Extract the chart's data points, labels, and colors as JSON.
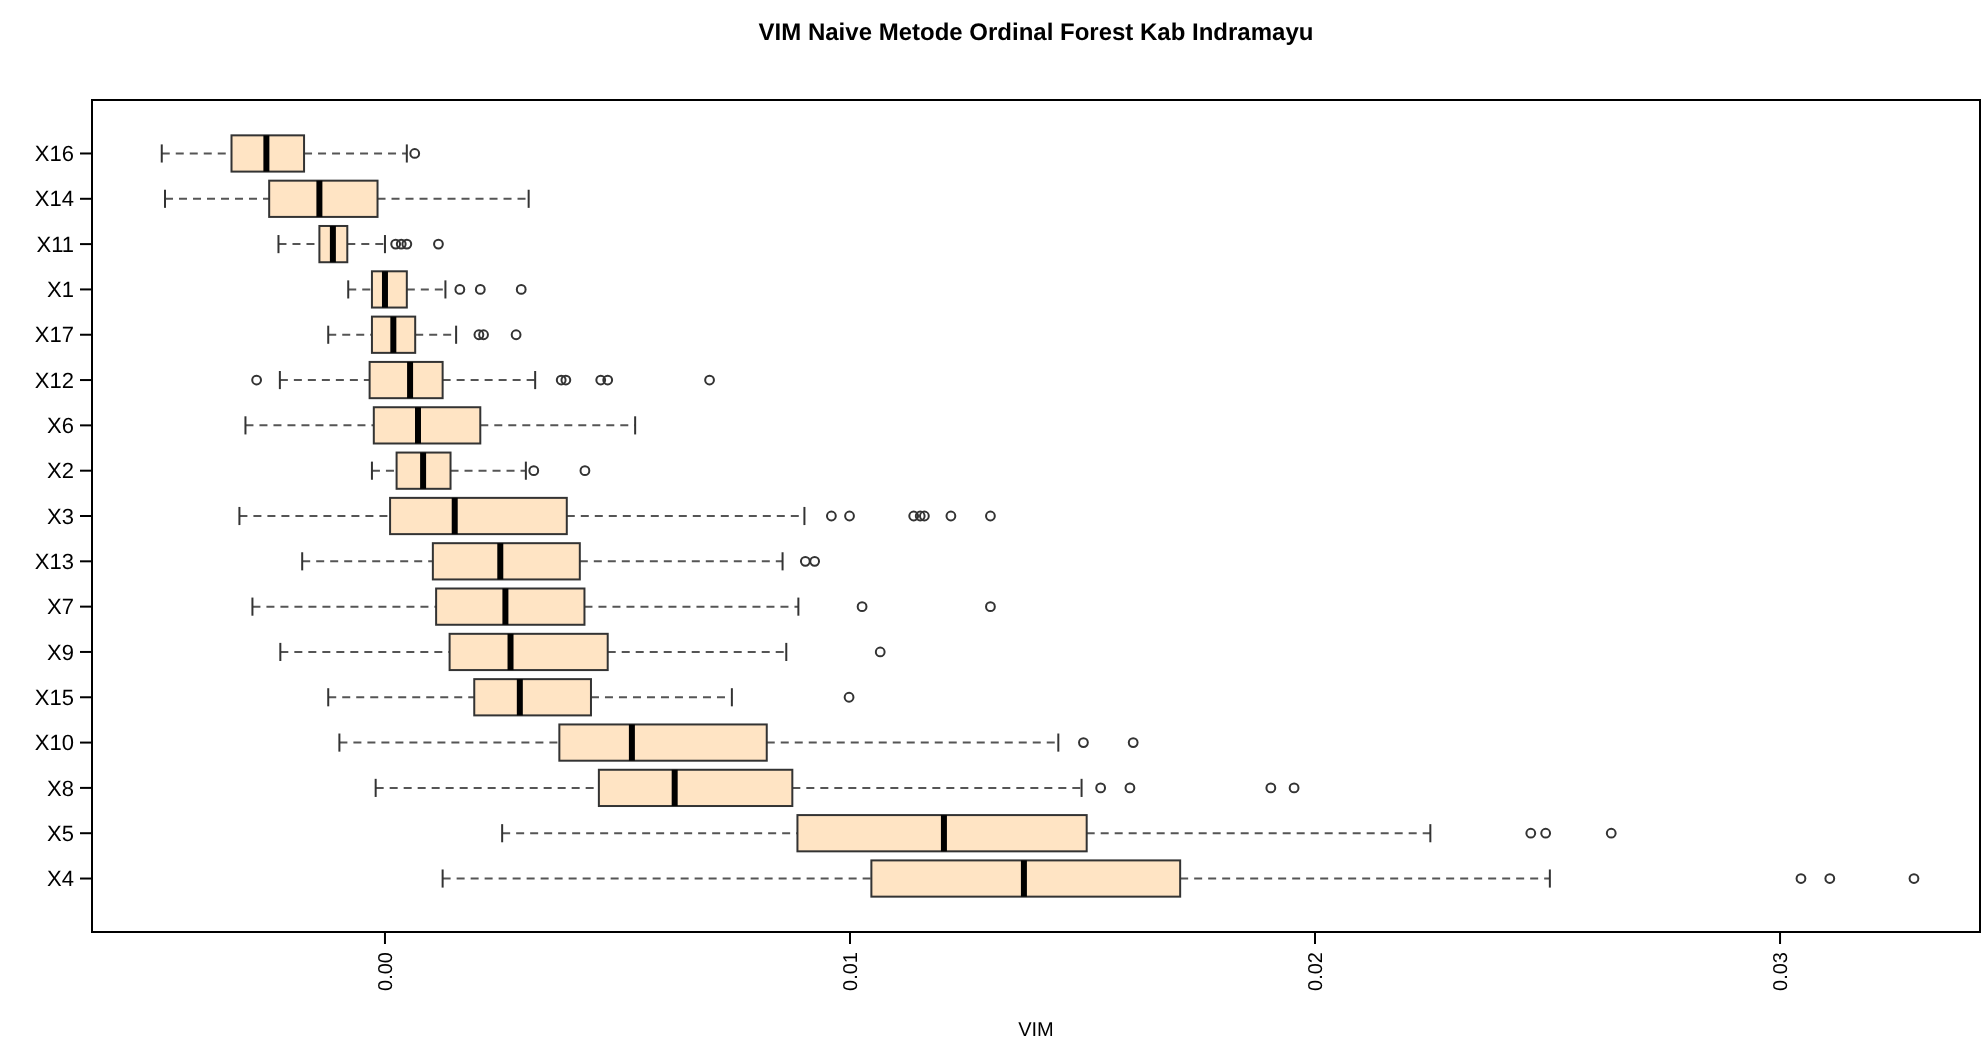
{
  "chart_data": {
    "type": "box",
    "title": "VIM Naive Metode Ordinal Forest Kab Indramayu",
    "xlabel": "VIM",
    "orientation": "horizontal",
    "color": "#ffe4c4",
    "categories": [
      "X16",
      "X14",
      "X11",
      "X1",
      "X17",
      "X12",
      "X6",
      "X2",
      "X3",
      "X13",
      "X7",
      "X9",
      "X15",
      "X10",
      "X8",
      "X5",
      "X4"
    ],
    "xlim": [
      -0.0063,
      0.0343
    ],
    "xticks": [
      {
        "value": 0,
        "label": "0.00"
      },
      {
        "value": 0.01,
        "label": "0.01"
      },
      {
        "value": 0.02,
        "label": "0.02"
      },
      {
        "value": 0.03,
        "label": "0.03"
      }
    ],
    "boxes": [
      {
        "low": -0.0048,
        "q1": -0.0033,
        "median": -0.00255,
        "q3": -0.00174,
        "high": 0.00047,
        "outliers": [
          0.00064
        ]
      },
      {
        "low": -0.00473,
        "q1": -0.00249,
        "median": -0.00141,
        "q3": -0.00016,
        "high": 0.00309
      },
      {
        "low": -0.00229,
        "q1": -0.00141,
        "median": -0.00112,
        "q3": -0.00081,
        "high": 0.0,
        "outliers": [
          0.00023,
          0.00035,
          0.00047,
          0.00115
        ]
      },
      {
        "low": -0.00079,
        "q1": -0.00028,
        "median": 0.0,
        "q3": 0.00047,
        "high": 0.0013,
        "outliers": [
          0.00161,
          0.00205,
          0.00293
        ]
      },
      {
        "low": -0.00122,
        "q1": -0.00028,
        "median": 0.00018,
        "q3": 0.00065,
        "high": 0.00153,
        "outliers": [
          0.00202,
          0.00212,
          0.00282
        ]
      },
      {
        "low": -0.00226,
        "q1": -0.00033,
        "median": 0.00054,
        "q3": 0.00124,
        "high": 0.00323,
        "outliers": [
          -0.00276,
          0.00379,
          0.00389,
          0.00464,
          0.00479,
          0.00698
        ]
      },
      {
        "low": -0.003,
        "q1": -0.00024,
        "median": 0.00071,
        "q3": 0.00205,
        "high": 0.00538
      },
      {
        "low": -0.00028,
        "q1": 0.00025,
        "median": 0.00082,
        "q3": 0.00141,
        "high": 0.00303,
        "outliers": [
          0.0032,
          0.0043
        ]
      },
      {
        "low": -0.00313,
        "q1": 0.00011,
        "median": 0.0015,
        "q3": 0.00391,
        "high": 0.00902,
        "outliers": [
          0.0096,
          0.00999,
          0.01137,
          0.01151,
          0.0116,
          0.01217,
          0.01302
        ]
      },
      {
        "low": -0.00178,
        "q1": 0.00103,
        "median": 0.00248,
        "q3": 0.00419,
        "high": 0.00855,
        "outliers": [
          0.00904,
          0.00924
        ]
      },
      {
        "low": -0.00285,
        "q1": 0.0011,
        "median": 0.00259,
        "q3": 0.00429,
        "high": 0.00889,
        "outliers": [
          0.01026,
          0.01302
        ]
      },
      {
        "low": -0.00225,
        "q1": 0.00139,
        "median": 0.0027,
        "q3": 0.00479,
        "high": 0.00863,
        "outliers": [
          0.01065
        ]
      },
      {
        "low": -0.00122,
        "q1": 0.00192,
        "median": 0.0029,
        "q3": 0.00443,
        "high": 0.00746,
        "outliers": [
          0.00998
        ]
      },
      {
        "low": -0.00098,
        "q1": 0.00375,
        "median": 0.00531,
        "q3": 0.00821,
        "high": 0.01448,
        "outliers": [
          0.01502,
          0.01609
        ]
      },
      {
        "low": -0.0002,
        "q1": 0.0046,
        "median": 0.00623,
        "q3": 0.00876,
        "high": 0.01498,
        "outliers": [
          0.01539,
          0.01602,
          0.01905,
          0.01955
        ]
      },
      {
        "low": 0.00252,
        "q1": 0.00887,
        "median": 0.01202,
        "q3": 0.01509,
        "high": 0.02248,
        "outliers": [
          0.02464,
          0.02496,
          0.02637
        ]
      },
      {
        "low": 0.00124,
        "q1": 0.01046,
        "median": 0.01374,
        "q3": 0.0171,
        "high": 0.02505,
        "outliers": [
          0.03045,
          0.03107,
          0.03288
        ]
      }
    ]
  }
}
